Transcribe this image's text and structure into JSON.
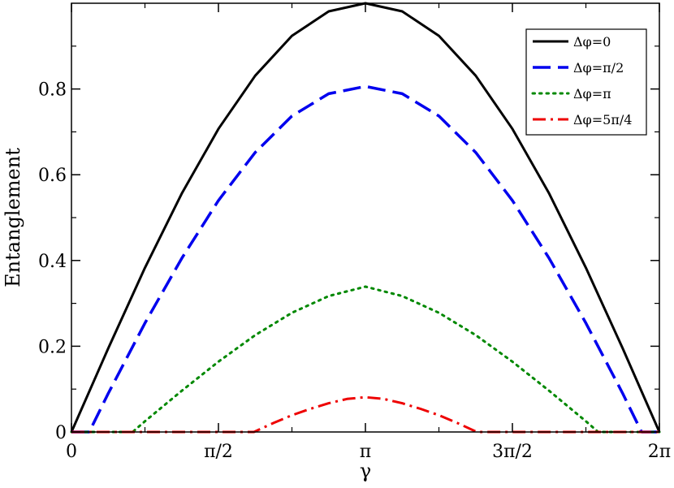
{
  "chart_data": {
    "type": "line",
    "xlabel": "γ",
    "ylabel": "Entanglement",
    "xlim": [
      0,
      6.2832
    ],
    "ylim": [
      0,
      1.0
    ],
    "x_ticks": [
      {
        "value": 0,
        "label": "0"
      },
      {
        "value": 1.5708,
        "label": "π/2"
      },
      {
        "value": 3.1416,
        "label": "π"
      },
      {
        "value": 4.7124,
        "label": "3π/2"
      },
      {
        "value": 6.2832,
        "label": "2π"
      }
    ],
    "y_ticks": [
      {
        "value": 0,
        "label": "0"
      },
      {
        "value": 0.2,
        "label": "0.2"
      },
      {
        "value": 0.4,
        "label": "0.4"
      },
      {
        "value": 0.6,
        "label": "0.6"
      },
      {
        "value": 0.8,
        "label": "0.8"
      }
    ],
    "grid": false,
    "legend_position": "top-right",
    "series": [
      {
        "name": "Δφ=0",
        "color": "#000000",
        "style": "solid",
        "x": [
          0,
          0.3927,
          0.7854,
          1.1781,
          1.5708,
          1.9635,
          2.3562,
          2.7489,
          3.1416,
          3.5343,
          3.927,
          4.3197,
          4.7124,
          5.1051,
          5.4978,
          5.8905,
          6.2832
        ],
        "y": [
          0,
          0.195,
          0.383,
          0.556,
          0.707,
          0.831,
          0.924,
          0.981,
          1.0,
          0.981,
          0.924,
          0.831,
          0.707,
          0.556,
          0.383,
          0.195,
          0
        ]
      },
      {
        "name": "Δφ=π/2",
        "color": "#0000ee",
        "style": "dashed",
        "x": [
          0,
          0.19,
          0.3927,
          0.7854,
          1.1781,
          1.5708,
          1.9635,
          2.3562,
          2.7489,
          3.1416,
          3.5343,
          3.927,
          4.3197,
          4.7124,
          5.1051,
          5.4978,
          5.8905,
          6.093,
          6.2832
        ],
        "y": [
          0,
          0,
          0.09,
          0.254,
          0.405,
          0.54,
          0.652,
          0.737,
          0.789,
          0.806,
          0.789,
          0.737,
          0.652,
          0.54,
          0.405,
          0.254,
          0.09,
          0,
          0
        ]
      },
      {
        "name": "Δφ=π",
        "color": "#008800",
        "style": "dotted",
        "x": [
          0,
          0.6545,
          0.7854,
          1.1781,
          1.5708,
          1.9635,
          2.3562,
          2.7489,
          3.1416,
          3.5343,
          3.927,
          4.3197,
          4.7124,
          5.1051,
          5.4978,
          5.6287,
          6.2832
        ],
        "y": [
          0,
          0,
          0.025,
          0.096,
          0.164,
          0.226,
          0.278,
          0.317,
          0.339,
          0.317,
          0.278,
          0.226,
          0.164,
          0.096,
          0.025,
          0,
          0
        ]
      },
      {
        "name": "Δφ=5π/4",
        "color": "#ee0000",
        "style": "dashdot",
        "x": [
          0,
          1.95,
          2.1598,
          2.3562,
          2.5525,
          2.7489,
          2.9452,
          3.1416,
          3.3379,
          3.5343,
          3.7306,
          3.927,
          4.1233,
          4.3329,
          6.2832
        ],
        "y": [
          0,
          0,
          0.021,
          0.039,
          0.054,
          0.067,
          0.077,
          0.081,
          0.077,
          0.067,
          0.054,
          0.039,
          0.021,
          0,
          0
        ]
      }
    ]
  }
}
